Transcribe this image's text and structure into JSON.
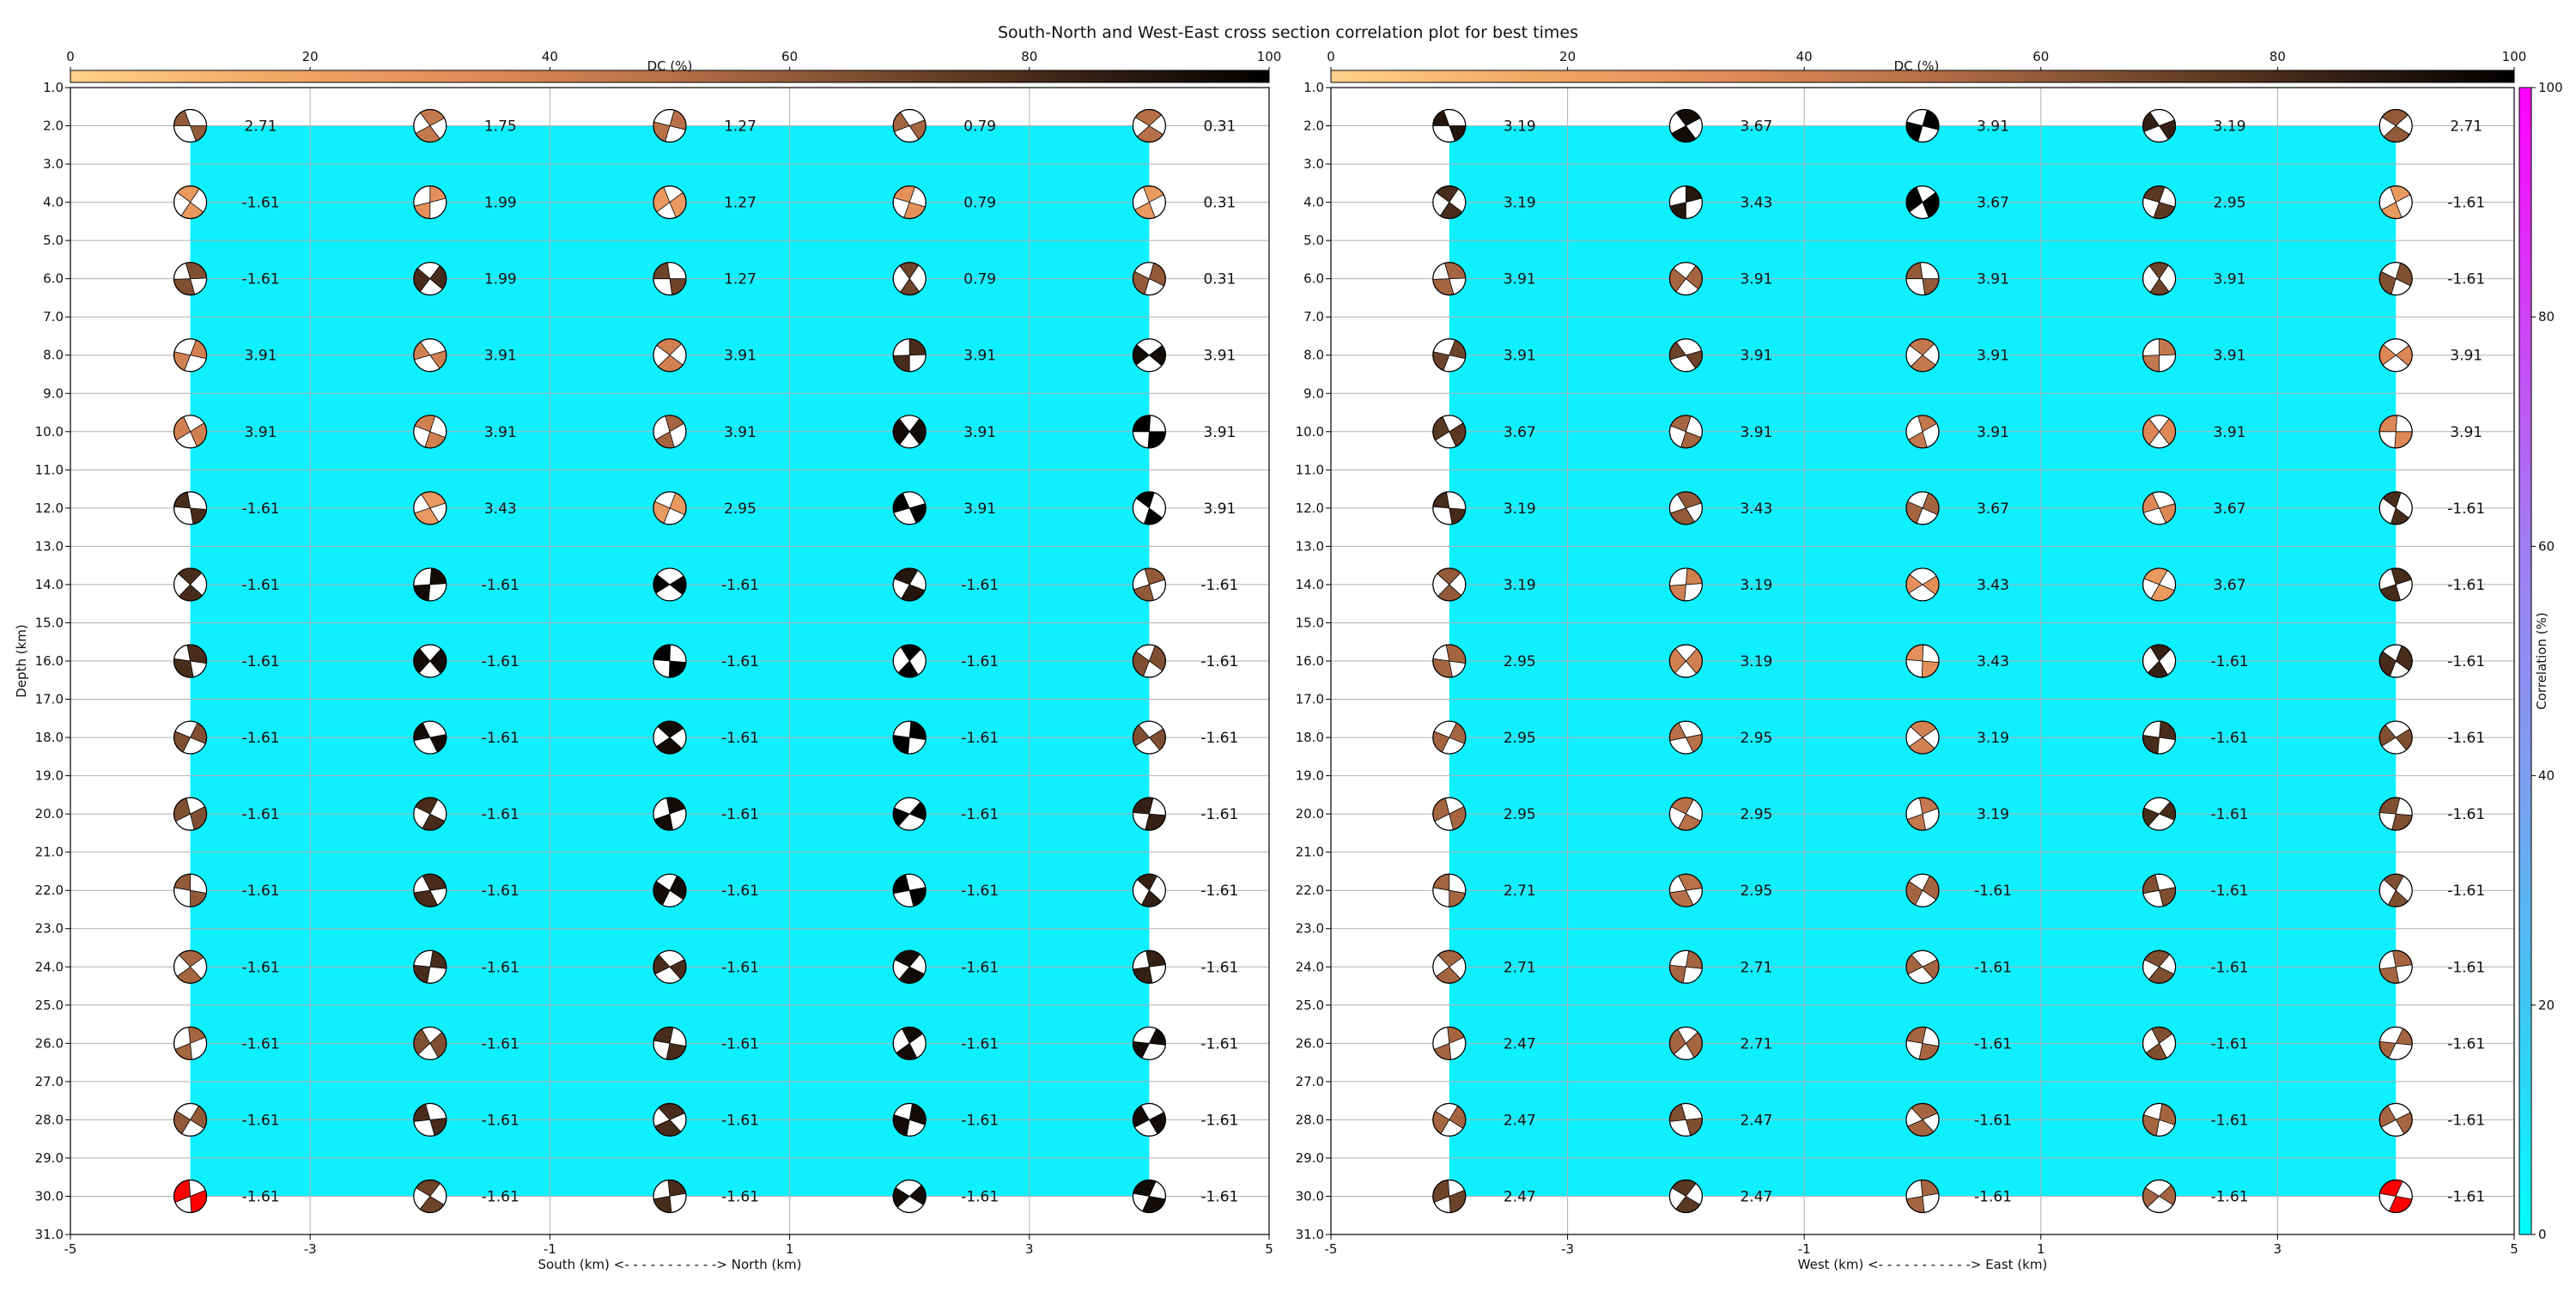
{
  "title": "South-North and West-East cross section correlation plot for best times",
  "colors": {
    "background_fill": "#0ff0ff",
    "grid": "#b0b0b0",
    "beachball_edge": "#000000",
    "highlight": "#ff0000",
    "dc_colormap": [
      "#ffd18a",
      "#f2a865",
      "#e28a58",
      "#b77048",
      "#7a4b2e",
      "#3b2416",
      "#000000"
    ],
    "correlation_colormap": [
      "#00ffff",
      "#3fc6f5",
      "#7e9ef0",
      "#a07ef2",
      "#d043f7",
      "#ff00ff"
    ]
  },
  "dc_colorbar": {
    "label": "DC (%)",
    "ticks": [
      "0",
      "20",
      "40",
      "60",
      "80",
      "100"
    ]
  },
  "correlation_colorbar": {
    "label": "Correlation (%)",
    "ticks": [
      "0",
      "20",
      "40",
      "60",
      "80",
      "100"
    ]
  },
  "chart_data": [
    {
      "type": "scatter",
      "name": "south-north",
      "xlabel": "South (km) <- - - - - - - - - - -> North (km)",
      "ylabel": "Depth (km)",
      "xlim": [
        -5,
        5
      ],
      "ylim": [
        31,
        1
      ],
      "x_ticks": [
        "-5",
        "-3",
        "-1",
        "1",
        "3",
        "5"
      ],
      "y_ticks": [
        "1.0",
        "2.0",
        "3.0",
        "4.0",
        "5.0",
        "6.0",
        "7.0",
        "8.0",
        "9.0",
        "10.0",
        "11.0",
        "12.0",
        "13.0",
        "14.0",
        "15.0",
        "16.0",
        "17.0",
        "18.0",
        "19.0",
        "20.0",
        "21.0",
        "22.0",
        "23.0",
        "24.0",
        "25.0",
        "26.0",
        "27.0",
        "28.0",
        "29.0",
        "30.0",
        "31.0"
      ],
      "grid": true,
      "x": [
        -4,
        -2,
        0,
        2,
        4
      ],
      "depths": [
        2,
        4,
        6,
        8,
        10,
        12,
        14,
        16,
        18,
        20,
        22,
        24,
        26,
        28,
        30
      ],
      "fill_region": {
        "x": [
          -4,
          4
        ],
        "depth": [
          2,
          30
        ]
      },
      "values": [
        [
          "2.71",
          "1.75",
          "1.27",
          "0.79",
          "0.31"
        ],
        [
          "-1.61",
          "1.99",
          "1.27",
          "0.79",
          "0.31"
        ],
        [
          "-1.61",
          "1.99",
          "1.27",
          "0.79",
          "0.31"
        ],
        [
          "3.91",
          "3.91",
          "3.91",
          "3.91",
          "3.91"
        ],
        [
          "3.91",
          "3.91",
          "3.91",
          "3.91",
          "3.91"
        ],
        [
          "-1.61",
          "3.43",
          "2.95",
          "3.91",
          "3.91"
        ],
        [
          "-1.61",
          "-1.61",
          "-1.61",
          "-1.61",
          "-1.61"
        ],
        [
          "-1.61",
          "-1.61",
          "-1.61",
          "-1.61",
          "-1.61"
        ],
        [
          "-1.61",
          "-1.61",
          "-1.61",
          "-1.61",
          "-1.61"
        ],
        [
          "-1.61",
          "-1.61",
          "-1.61",
          "-1.61",
          "-1.61"
        ],
        [
          "-1.61",
          "-1.61",
          "-1.61",
          "-1.61",
          "-1.61"
        ],
        [
          "-1.61",
          "-1.61",
          "-1.61",
          "-1.61",
          "-1.61"
        ],
        [
          "-1.61",
          "-1.61",
          "-1.61",
          "-1.61",
          "-1.61"
        ],
        [
          "-1.61",
          "-1.61",
          "-1.61",
          "-1.61",
          "-1.61"
        ],
        [
          "-1.61",
          "-1.61",
          "-1.61",
          "-1.61",
          "-1.61"
        ]
      ],
      "dc_percent": [
        [
          60,
          45,
          50,
          55,
          50
        ],
        [
          25,
          30,
          25,
          30,
          25
        ],
        [
          65,
          80,
          70,
          70,
          60
        ],
        [
          40,
          40,
          40,
          80,
          95
        ],
        [
          40,
          40,
          55,
          95,
          100
        ],
        [
          80,
          25,
          25,
          100,
          100
        ],
        [
          80,
          95,
          100,
          90,
          60
        ],
        [
          80,
          95,
          100,
          100,
          65
        ],
        [
          65,
          95,
          95,
          100,
          65
        ],
        [
          65,
          80,
          95,
          100,
          85
        ],
        [
          60,
          80,
          95,
          100,
          85
        ],
        [
          55,
          80,
          80,
          95,
          85
        ],
        [
          55,
          65,
          80,
          95,
          95
        ],
        [
          60,
          80,
          80,
          95,
          95
        ],
        [
          0,
          70,
          80,
          95,
          95
        ]
      ],
      "highlighted": [
        [
          14,
          0
        ]
      ]
    },
    {
      "type": "scatter",
      "name": "west-east",
      "xlabel": "West (km) <- - - - - - - - - - -> East (km)",
      "ylabel": "",
      "xlim": [
        -5,
        5
      ],
      "ylim": [
        31,
        1
      ],
      "x_ticks": [
        "-5",
        "-3",
        "-1",
        "1",
        "3",
        "5"
      ],
      "y_ticks": [
        "1.0",
        "2.0",
        "3.0",
        "4.0",
        "5.0",
        "6.0",
        "7.0",
        "8.0",
        "9.0",
        "10.0",
        "11.0",
        "12.0",
        "13.0",
        "14.0",
        "15.0",
        "16.0",
        "17.0",
        "18.0",
        "19.0",
        "20.0",
        "21.0",
        "22.0",
        "23.0",
        "24.0",
        "25.0",
        "26.0",
        "27.0",
        "28.0",
        "29.0",
        "30.0",
        "31.0"
      ],
      "grid": true,
      "x": [
        -4,
        -2,
        0,
        2,
        4
      ],
      "depths": [
        2,
        4,
        6,
        8,
        10,
        12,
        14,
        16,
        18,
        20,
        22,
        24,
        26,
        28,
        30
      ],
      "fill_region": {
        "x": [
          -4,
          4
        ],
        "depth": [
          2,
          30
        ]
      },
      "values": [
        [
          "3.19",
          "3.67",
          "3.91",
          "3.19",
          "2.71"
        ],
        [
          "3.19",
          "3.43",
          "3.67",
          "2.95",
          "-1.61"
        ],
        [
          "3.91",
          "3.91",
          "3.91",
          "3.91",
          "-1.61"
        ],
        [
          "3.91",
          "3.91",
          "3.91",
          "3.91",
          "3.91"
        ],
        [
          "3.67",
          "3.91",
          "3.91",
          "3.91",
          "3.91"
        ],
        [
          "3.19",
          "3.43",
          "3.67",
          "3.67",
          "-1.61"
        ],
        [
          "3.19",
          "3.19",
          "3.43",
          "3.67",
          "-1.61"
        ],
        [
          "2.95",
          "3.19",
          "3.43",
          "-1.61",
          "-1.61"
        ],
        [
          "2.95",
          "2.95",
          "3.19",
          "-1.61",
          "-1.61"
        ],
        [
          "2.95",
          "2.95",
          "3.19",
          "-1.61",
          "-1.61"
        ],
        [
          "2.71",
          "2.95",
          "-1.61",
          "-1.61",
          "-1.61"
        ],
        [
          "2.71",
          "2.71",
          "-1.61",
          "-1.61",
          "-1.61"
        ],
        [
          "2.47",
          "2.71",
          "-1.61",
          "-1.61",
          "-1.61"
        ],
        [
          "2.47",
          "2.47",
          "-1.61",
          "-1.61",
          "-1.61"
        ],
        [
          "2.47",
          "2.47",
          "-1.61",
          "-1.61",
          "-1.61"
        ]
      ],
      "dc_percent": [
        [
          90,
          95,
          100,
          85,
          60
        ],
        [
          80,
          90,
          100,
          75,
          25
        ],
        [
          55,
          55,
          60,
          70,
          65
        ],
        [
          70,
          70,
          45,
          45,
          35
        ],
        [
          75,
          55,
          45,
          35,
          35
        ],
        [
          80,
          60,
          55,
          35,
          80
        ],
        [
          60,
          40,
          30,
          25,
          80
        ],
        [
          55,
          40,
          30,
          85,
          80
        ],
        [
          55,
          50,
          40,
          80,
          65
        ],
        [
          55,
          50,
          45,
          80,
          65
        ],
        [
          55,
          50,
          55,
          65,
          65
        ],
        [
          55,
          55,
          55,
          65,
          55
        ],
        [
          55,
          55,
          55,
          65,
          55
        ],
        [
          55,
          65,
          55,
          55,
          55
        ],
        [
          70,
          75,
          55,
          55,
          0
        ]
      ],
      "highlighted": [
        [
          14,
          4
        ]
      ]
    }
  ]
}
